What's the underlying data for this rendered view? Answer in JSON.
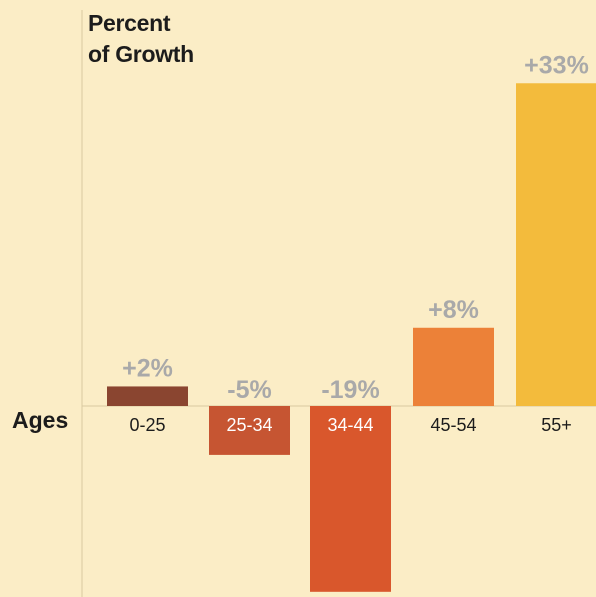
{
  "chart_data": {
    "type": "bar",
    "ylabel_lines": [
      "Percent",
      "of Growth"
    ],
    "xlabel": "Ages",
    "categories": [
      "0-25",
      "25-34",
      "34-44",
      "45-54",
      "55+"
    ],
    "values": [
      2,
      -5,
      -19,
      8,
      33
    ],
    "value_labels": [
      "+2%",
      "-5%",
      "-19%",
      "+8%",
      "+33%"
    ],
    "colors": [
      "#8a4530",
      "#c65532",
      "#d9572c",
      "#ec8138",
      "#f3bb3c"
    ],
    "ylim": [
      -19,
      33
    ],
    "grid": false,
    "legend": "none"
  },
  "colors": {
    "background": "#fbedc6",
    "axis": "#d8c9a0",
    "value_label": "#a9a9a9",
    "tick_dark": "#1c1c1c",
    "tick_light": "#ffffff"
  }
}
